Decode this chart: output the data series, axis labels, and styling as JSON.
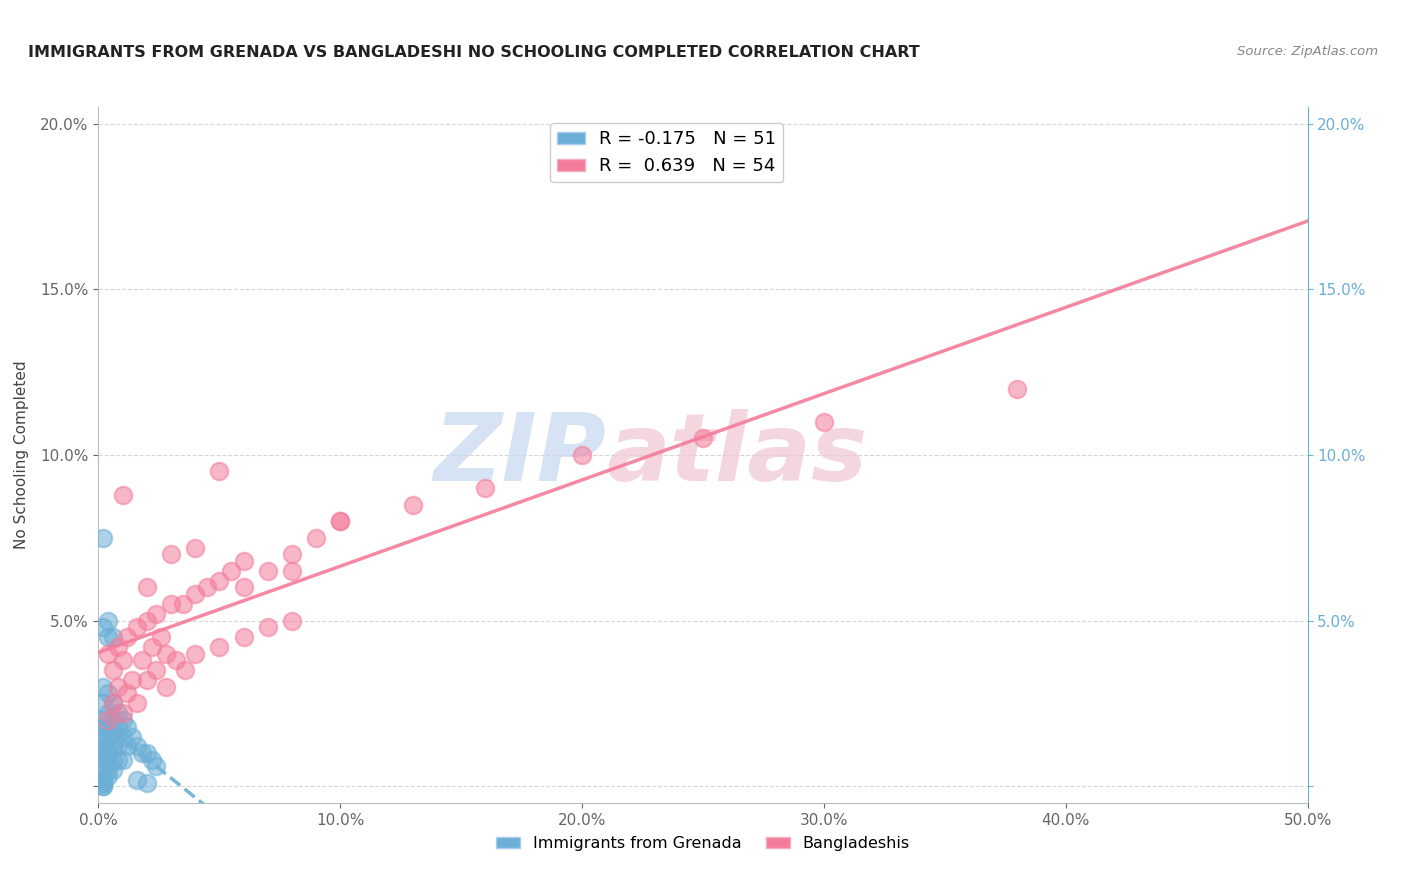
{
  "title": "IMMIGRANTS FROM GRENADA VS BANGLADESHI NO SCHOOLING COMPLETED CORRELATION CHART",
  "source": "Source: ZipAtlas.com",
  "ylabel": "No Schooling Completed",
  "xlim": [
    0.0,
    0.5
  ],
  "ylim": [
    -0.005,
    0.205
  ],
  "series1_color": "#6baed6",
  "series2_color": "#f47c9a",
  "series1_R": -0.175,
  "series1_N": 51,
  "series2_R": 0.639,
  "series2_N": 54,
  "background_color": "#ffffff",
  "grid_color": "#cccccc",
  "right_tick_color": "#6baed6",
  "watermark_color": "#dde8f5",
  "watermark_color2": "#f5dde8",
  "scatter1_x": [
    0.002,
    0.002,
    0.002,
    0.002,
    0.002,
    0.002,
    0.002,
    0.002,
    0.002,
    0.002,
    0.004,
    0.004,
    0.004,
    0.004,
    0.004,
    0.004,
    0.004,
    0.004,
    0.004,
    0.006,
    0.006,
    0.006,
    0.006,
    0.006,
    0.006,
    0.008,
    0.008,
    0.008,
    0.008,
    0.01,
    0.01,
    0.01,
    0.012,
    0.012,
    0.014,
    0.016,
    0.018,
    0.02,
    0.022,
    0.024,
    0.002,
    0.004,
    0.002,
    0.004,
    0.006,
    0.002,
    0.002,
    0.002,
    0.002,
    0.016,
    0.02
  ],
  "scatter1_y": [
    0.03,
    0.025,
    0.02,
    0.018,
    0.015,
    0.012,
    0.01,
    0.008,
    0.005,
    0.002,
    0.028,
    0.022,
    0.018,
    0.015,
    0.012,
    0.01,
    0.008,
    0.005,
    0.003,
    0.025,
    0.02,
    0.016,
    0.012,
    0.008,
    0.005,
    0.022,
    0.018,
    0.012,
    0.008,
    0.02,
    0.015,
    0.008,
    0.018,
    0.012,
    0.015,
    0.012,
    0.01,
    0.01,
    0.008,
    0.006,
    0.075,
    0.05,
    0.048,
    0.045,
    0.045,
    0.001,
    0.001,
    0.0,
    0.0,
    0.002,
    0.001
  ],
  "scatter2_x": [
    0.004,
    0.006,
    0.008,
    0.01,
    0.012,
    0.014,
    0.016,
    0.018,
    0.02,
    0.022,
    0.024,
    0.026,
    0.028,
    0.03,
    0.035,
    0.04,
    0.045,
    0.05,
    0.055,
    0.06,
    0.07,
    0.08,
    0.09,
    0.1,
    0.004,
    0.006,
    0.008,
    0.01,
    0.012,
    0.016,
    0.02,
    0.024,
    0.028,
    0.032,
    0.036,
    0.04,
    0.05,
    0.06,
    0.07,
    0.08,
    0.01,
    0.02,
    0.03,
    0.04,
    0.05,
    0.06,
    0.08,
    0.1,
    0.13,
    0.16,
    0.2,
    0.25,
    0.3,
    0.38
  ],
  "scatter2_y": [
    0.04,
    0.035,
    0.042,
    0.038,
    0.045,
    0.032,
    0.048,
    0.038,
    0.05,
    0.042,
    0.052,
    0.045,
    0.04,
    0.055,
    0.055,
    0.058,
    0.06,
    0.062,
    0.065,
    0.068,
    0.065,
    0.07,
    0.075,
    0.08,
    0.02,
    0.025,
    0.03,
    0.022,
    0.028,
    0.025,
    0.032,
    0.035,
    0.03,
    0.038,
    0.035,
    0.04,
    0.042,
    0.045,
    0.048,
    0.05,
    0.088,
    0.06,
    0.07,
    0.072,
    0.095,
    0.06,
    0.065,
    0.08,
    0.085,
    0.09,
    0.1,
    0.105,
    0.11,
    0.12
  ]
}
